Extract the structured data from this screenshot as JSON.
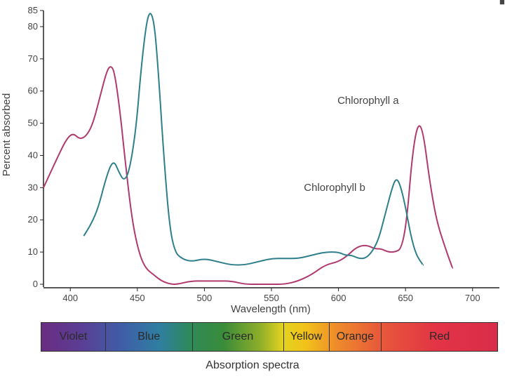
{
  "chart_data": {
    "type": "line",
    "xlabel": "Wavelength (nm)",
    "ylabel": "Percent absorbed",
    "xlim": [
      380,
      720
    ],
    "ylim": [
      0,
      85
    ],
    "x_ticks": [
      400,
      450,
      500,
      550,
      600,
      650,
      700
    ],
    "y_ticks": [
      0,
      10,
      20,
      30,
      40,
      50,
      60,
      70,
      80,
      85
    ],
    "grid": false,
    "series": [
      {
        "name": "Chlorophyll a",
        "color": "#b03a6e",
        "x": [
          380,
          390,
          397,
          402,
          407,
          412,
          417,
          422,
          427,
          430,
          433,
          437,
          441,
          446,
          451,
          456,
          462,
          468,
          475,
          480,
          490,
          500,
          510,
          520,
          530,
          540,
          550,
          560,
          570,
          580,
          590,
          600,
          607,
          612,
          617,
          622,
          627,
          632,
          637,
          642,
          647,
          651,
          655,
          659,
          663,
          668,
          673,
          679,
          685
        ],
        "y": [
          30,
          39,
          45,
          47,
          45,
          46,
          50,
          58,
          66,
          68,
          66,
          54,
          38,
          20,
          10,
          5,
          3,
          1,
          0,
          0,
          1,
          1,
          1,
          1,
          0,
          0,
          0,
          0,
          1,
          3,
          6,
          7,
          9,
          11,
          12,
          12,
          11,
          11,
          10,
          10,
          11,
          20,
          40,
          50,
          48,
          32,
          20,
          12,
          5
        ]
      },
      {
        "name": "Chlorophyll b",
        "color": "#2e7f8c",
        "x": [
          410,
          416,
          421,
          426,
          430,
          433,
          436,
          440,
          444,
          449,
          453,
          457,
          460,
          463,
          466,
          470,
          474,
          478,
          483,
          490,
          500,
          510,
          520,
          530,
          540,
          550,
          560,
          570,
          580,
          590,
          600,
          605,
          610,
          615,
          620,
          625,
          630,
          635,
          640,
          643,
          646,
          650,
          654,
          658,
          663
        ],
        "y": [
          15,
          19,
          24,
          32,
          37,
          38,
          35,
          32,
          35,
          48,
          68,
          82,
          85,
          80,
          64,
          38,
          18,
          10,
          8,
          7,
          8,
          7,
          6,
          6,
          7,
          8,
          8,
          8,
          9,
          10,
          10,
          9,
          9,
          8,
          8,
          10,
          14,
          22,
          30,
          33,
          31,
          24,
          15,
          9,
          6
        ]
      }
    ],
    "annotations": [
      {
        "text": "Chlorophyll a",
        "at_x": 645,
        "at_y": 56
      },
      {
        "text": "Chlorophyll b",
        "at_x": 620,
        "at_y": 29
      }
    ],
    "spectrum_bar": {
      "caption": "Absorption spectra",
      "bands": [
        {
          "label": "Violet",
          "share": 0.14
        },
        {
          "label": "Blue",
          "share": 0.19
        },
        {
          "label": "Green",
          "share": 0.2
        },
        {
          "label": "Yellow",
          "share": 0.1
        },
        {
          "label": "Orange",
          "share": 0.115
        },
        {
          "label": "Red",
          "share": 0.255
        }
      ]
    }
  },
  "corner_mark": "■"
}
